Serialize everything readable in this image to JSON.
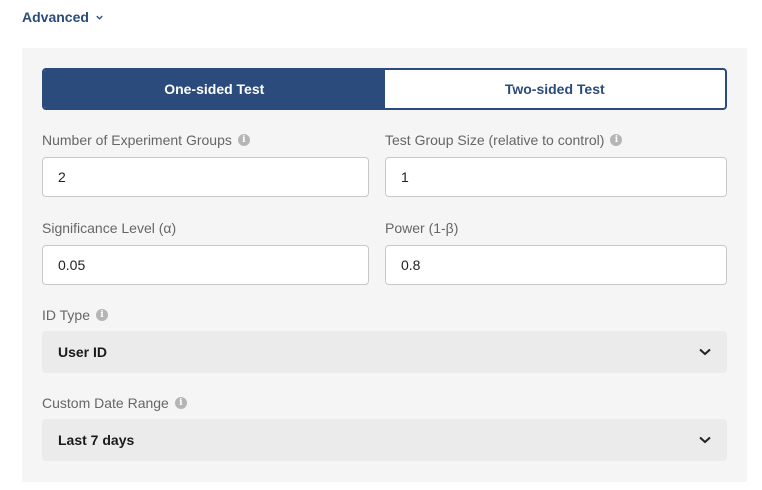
{
  "section": {
    "title": "Advanced",
    "icon": "chevron-down-icon"
  },
  "test_type": {
    "options": [
      "One-sided Test",
      "Two-sided Test"
    ],
    "selected": "One-sided Test"
  },
  "fields": {
    "groups": {
      "label": "Number of Experiment Groups",
      "value": "2"
    },
    "group_size": {
      "label": "Test Group Size (relative to control)",
      "value": "1"
    },
    "significance": {
      "label": "Significance Level (α)",
      "value": "0.05"
    },
    "power": {
      "label": "Power (1-β)",
      "value": "0.8"
    },
    "id_type": {
      "label": "ID Type",
      "value": "User ID"
    },
    "date_range": {
      "label": "Custom Date Range",
      "value": "Last 7 days"
    }
  },
  "colors": {
    "accent": "#2a4b7c",
    "panel": "#f5f5f5",
    "select_bg": "#ebebeb"
  }
}
